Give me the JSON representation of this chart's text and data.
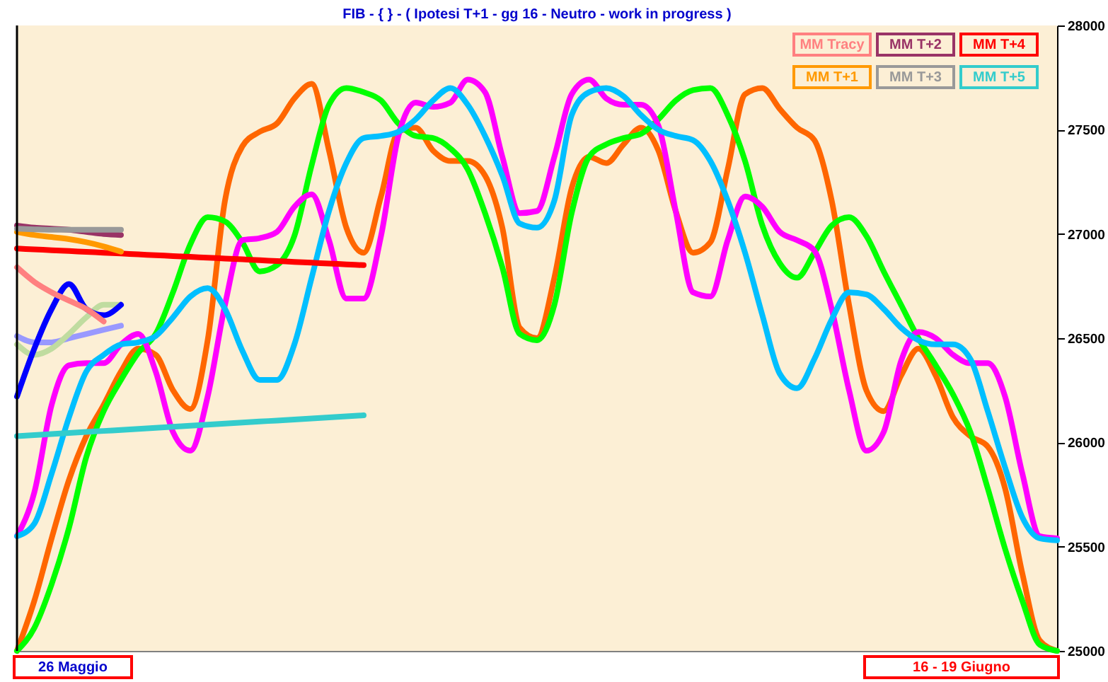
{
  "chart_data": {
    "type": "line",
    "title": "FIB  -  {  }  - ( Ipotesi T+1 -  gg  16 - Neutro  - work in progress )",
    "categories": [
      null,
      null,
      null,
      null,
      null,
      null,
      null,
      null,
      null,
      null,
      null,
      null,
      null,
      null,
      null,
      null,
      null,
      null,
      null,
      null,
      null,
      null,
      null,
      null,
      null,
      null,
      null,
      null,
      null,
      null,
      null,
      null,
      null,
      null,
      null,
      null,
      null,
      null,
      null,
      null,
      null,
      null,
      null,
      null,
      null,
      null,
      null,
      null,
      null,
      null,
      null,
      null,
      null,
      null,
      null,
      null,
      null,
      null,
      null,
      null,
      null
    ],
    "series": [
      {
        "color": "#ff6600",
        "values": [
          25000,
          25240,
          25540,
          25820,
          26030,
          26180,
          26340,
          26450,
          26420,
          26250,
          26160,
          26490,
          27160,
          27420,
          27490,
          27530,
          27650,
          27720,
          27400,
          27030,
          26910,
          27180,
          27490,
          27510,
          27400,
          27350,
          27350,
          27280,
          27030,
          26550,
          26500,
          26790,
          27220,
          27370,
          27340,
          27430,
          27510,
          27400,
          27110,
          26910,
          26960,
          27310,
          27670,
          27700,
          27600,
          27510,
          27450,
          27160,
          26660,
          26250,
          26150,
          26320,
          26450,
          26320,
          26120,
          26030,
          25980,
          25780,
          25370,
          25050,
          25000
        ]
      },
      {
        "color": "#00ff00",
        "values": [
          25000,
          25110,
          25320,
          25590,
          25930,
          26150,
          26300,
          26430,
          26520,
          26720,
          26950,
          27080,
          27060,
          26960,
          26820,
          26850,
          26990,
          27330,
          27620,
          27700,
          27680,
          27640,
          27530,
          27470,
          27460,
          27410,
          27310,
          27100,
          26840,
          26520,
          26490,
          26660,
          27100,
          27370,
          27430,
          27460,
          27480,
          27550,
          27640,
          27690,
          27700,
          27570,
          27350,
          27040,
          26860,
          26790,
          26910,
          27040,
          27080,
          26990,
          26820,
          26660,
          26500,
          26370,
          26230,
          26050,
          25780,
          25490,
          25240,
          25030,
          25000
        ]
      },
      {
        "color": "#ff00ff",
        "values": [
          25550,
          25760,
          26180,
          26370,
          26380,
          26380,
          26470,
          26520,
          26340,
          26050,
          25960,
          26220,
          26660,
          26970,
          26980,
          27010,
          27130,
          27190,
          26970,
          26690,
          26690,
          26990,
          27470,
          27630,
          27610,
          27630,
          27740,
          27680,
          27370,
          27100,
          27110,
          27370,
          27670,
          27740,
          27650,
          27620,
          27620,
          27520,
          27110,
          26720,
          26700,
          26970,
          27180,
          27130,
          27010,
          26970,
          26920,
          26640,
          26250,
          25960,
          26050,
          26390,
          26530,
          26500,
          26420,
          26380,
          26380,
          26220,
          25850,
          25550,
          25540
        ]
      },
      {
        "color": "#00bfff",
        "values": [
          25550,
          25610,
          25850,
          26120,
          26340,
          26420,
          26470,
          26480,
          26510,
          26600,
          26700,
          26740,
          26640,
          26440,
          26300,
          26300,
          26470,
          26790,
          27110,
          27340,
          27460,
          27470,
          27490,
          27550,
          27640,
          27700,
          27620,
          27470,
          27280,
          27050,
          27030,
          27160,
          27570,
          27680,
          27700,
          27660,
          27570,
          27500,
          27470,
          27450,
          27350,
          27160,
          26910,
          26610,
          26330,
          26260,
          26400,
          26590,
          26720,
          26710,
          26640,
          26550,
          26490,
          26470,
          26470,
          26400,
          26150,
          25880,
          25640,
          25540,
          25530
        ]
      },
      {
        "color": "#9999ff",
        "values": [
          26510,
          26480,
          26480,
          26500,
          26520,
          26540,
          26560,
          null,
          null,
          null,
          null,
          null,
          null,
          null,
          null,
          null,
          null,
          null,
          null,
          null,
          null,
          null,
          null,
          null,
          null,
          null,
          null,
          null,
          null,
          null,
          null,
          null,
          null,
          null,
          null,
          null,
          null,
          null,
          null,
          null,
          null,
          null,
          null,
          null,
          null,
          null,
          null,
          null,
          null,
          null,
          null,
          null,
          null,
          null,
          null,
          null,
          null,
          null,
          null,
          null,
          null
        ]
      },
      {
        "color": "#c0dca0",
        "values": [
          26470,
          26420,
          26450,
          26520,
          26600,
          26660,
          26660,
          null,
          null,
          null,
          null,
          null,
          null,
          null,
          null,
          null,
          null,
          null,
          null,
          null,
          null,
          null,
          null,
          null,
          null,
          null,
          null,
          null,
          null,
          null,
          null,
          null,
          null,
          null,
          null,
          null,
          null,
          null,
          null,
          null,
          null,
          null,
          null,
          null,
          null,
          null,
          null,
          null,
          null,
          null,
          null,
          null,
          null,
          null,
          null,
          null,
          null,
          null,
          null,
          null,
          null
        ]
      },
      {
        "color": "#0000ff",
        "values": [
          26220,
          26450,
          26640,
          26760,
          26640,
          26610,
          26660,
          null,
          null,
          null,
          null,
          null,
          null,
          null,
          null,
          null,
          null,
          null,
          null,
          null,
          null,
          null,
          null,
          null,
          null,
          null,
          null,
          null,
          null,
          null,
          null,
          null,
          null,
          null,
          null,
          null,
          null,
          null,
          null,
          null,
          null,
          null,
          null,
          null,
          null,
          null,
          null,
          null,
          null,
          null,
          null,
          null,
          null,
          null,
          null,
          null,
          null,
          null,
          null,
          null,
          null
        ]
      },
      {
        "name": "MM  Tracy",
        "color": "#ff8080",
        "values": [
          26840,
          26770,
          26720,
          26680,
          26640,
          26580,
          null,
          null,
          null,
          null,
          null,
          null,
          null,
          null,
          null,
          null,
          null,
          null,
          null,
          null,
          null,
          null,
          null,
          null,
          null,
          null,
          null,
          null,
          null,
          null,
          null,
          null,
          null,
          null,
          null,
          null,
          null,
          null,
          null,
          null,
          null,
          null,
          null,
          null,
          null,
          null,
          null,
          null,
          null,
          null,
          null,
          null,
          null,
          null,
          null,
          null,
          null,
          null,
          null,
          null,
          null
        ]
      },
      {
        "name": "MM  T+2",
        "color": "#993366",
        "values": [
          27040,
          27030,
          27025,
          27020,
          27010,
          27000,
          26995,
          null,
          null,
          null,
          null,
          null,
          null,
          null,
          null,
          null,
          null,
          null,
          null,
          null,
          null,
          null,
          null,
          null,
          null,
          null,
          null,
          null,
          null,
          null,
          null,
          null,
          null,
          null,
          null,
          null,
          null,
          null,
          null,
          null,
          null,
          null,
          null,
          null,
          null,
          null,
          null,
          null,
          null,
          null,
          null,
          null,
          null,
          null,
          null,
          null,
          null,
          null,
          null,
          null,
          null
        ]
      },
      {
        "name": "MM  T+4",
        "color": "#ff0000",
        "values": [
          26930,
          26926,
          26922,
          26918,
          26914,
          26910,
          26906,
          26902,
          26898,
          26894,
          26890,
          26886,
          26882,
          26878,
          26874,
          26870,
          26866,
          26862,
          26858,
          26854,
          26850,
          null,
          null,
          null,
          null,
          null,
          null,
          null,
          null,
          null,
          null,
          null,
          null,
          null,
          null,
          null,
          null,
          null,
          null,
          null,
          null,
          null,
          null,
          null,
          null,
          null,
          null,
          null,
          null,
          null,
          null,
          null,
          null,
          null,
          null,
          null,
          null,
          null,
          null,
          null,
          null
        ]
      },
      {
        "name": "MM  T+1",
        "color": "#ff9900",
        "values": [
          27010,
          26995,
          26985,
          26975,
          26960,
          26940,
          26915,
          null,
          null,
          null,
          null,
          null,
          null,
          null,
          null,
          null,
          null,
          null,
          null,
          null,
          null,
          null,
          null,
          null,
          null,
          null,
          null,
          null,
          null,
          null,
          null,
          null,
          null,
          null,
          null,
          null,
          null,
          null,
          null,
          null,
          null,
          null,
          null,
          null,
          null,
          null,
          null,
          null,
          null,
          null,
          null,
          null,
          null,
          null,
          null,
          null,
          null,
          null,
          null,
          null,
          null
        ]
      },
      {
        "name": "MM  T+3",
        "color": "#999999",
        "values": [
          27025,
          27022,
          27020,
          27020,
          27020,
          27020,
          27020,
          null,
          null,
          null,
          null,
          null,
          null,
          null,
          null,
          null,
          null,
          null,
          null,
          null,
          null,
          null,
          null,
          null,
          null,
          null,
          null,
          null,
          null,
          null,
          null,
          null,
          null,
          null,
          null,
          null,
          null,
          null,
          null,
          null,
          null,
          null,
          null,
          null,
          null,
          null,
          null,
          null,
          null,
          null,
          null,
          null,
          null,
          null,
          null,
          null,
          null,
          null,
          null,
          null,
          null
        ]
      },
      {
        "name": "MM  T+5",
        "color": "#33cccc",
        "values": [
          26030,
          26035,
          26040,
          26045,
          26050,
          26055,
          26060,
          26065,
          26070,
          26075,
          26080,
          26085,
          26090,
          26095,
          26100,
          26105,
          26110,
          26115,
          26120,
          26125,
          26130,
          null,
          null,
          null,
          null,
          null,
          null,
          null,
          null,
          null,
          null,
          null,
          null,
          null,
          null,
          null,
          null,
          null,
          null,
          null,
          null,
          null,
          null,
          null,
          null,
          null,
          null,
          null,
          null,
          null,
          null,
          null,
          null,
          null,
          null,
          null,
          null,
          null,
          null,
          null,
          null
        ]
      }
    ],
    "ylim": [
      25000,
      28000
    ],
    "yticks": [
      25000,
      25500,
      26000,
      26500,
      27000,
      27500,
      28000
    ],
    "tick_labels": "y",
    "legend": "top right",
    "annotations": [
      "26  Maggio",
      "16 - 19  Giugno"
    ]
  }
}
